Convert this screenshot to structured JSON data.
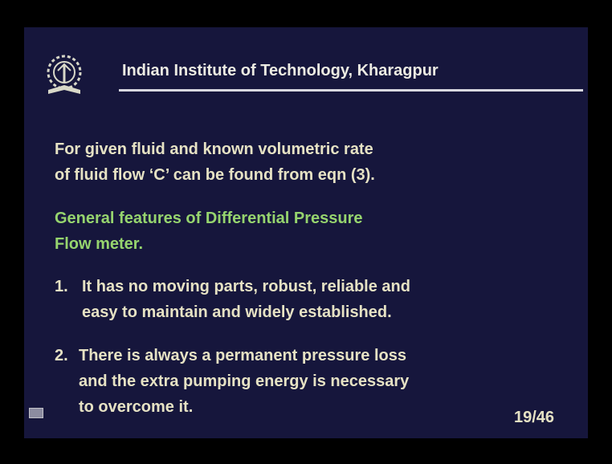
{
  "header": {
    "title": "Indian Institute of Technology, Kharagpur"
  },
  "intro": [
    "For given fluid and known volumetric rate",
    "of fluid flow ‘C’ can be found from eqn (3)."
  ],
  "heading": [
    "General features of Differential Pressure",
    "Flow meter."
  ],
  "items": [
    {
      "number": "1.",
      "lines": [
        "It has no moving parts, robust, reliable and",
        "easy to maintain and widely established."
      ]
    },
    {
      "number": "2.",
      "lines": [
        "There is always a permanent pressure loss",
        "and the extra pumping energy is necessary",
        "to overcome it."
      ]
    }
  ],
  "page_number": "19/46"
}
